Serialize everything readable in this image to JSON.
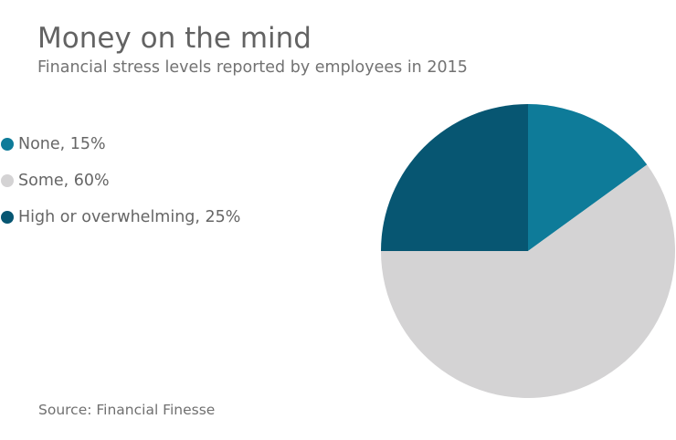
{
  "header": {
    "title": "Money on the mind",
    "subtitle": "Financial stress levels reported by employees in 2015"
  },
  "legend": {
    "items": [
      {
        "label": "None, 15%",
        "color": "#0e7b99"
      },
      {
        "label": "Some, 60%",
        "color": "#d4d3d4"
      },
      {
        "label": "High or overwhelming, 25%",
        "color": "#075672"
      }
    ]
  },
  "footer": {
    "source": "Source: Financial Finesse"
  },
  "chart_data": {
    "type": "pie",
    "title": "Money on the mind",
    "subtitle": "Financial stress levels reported by employees in 2015",
    "categories": [
      "None",
      "Some",
      "High or overwhelming"
    ],
    "values": [
      15,
      60,
      25
    ],
    "unit": "%",
    "colors": [
      "#0e7b99",
      "#d4d3d4",
      "#075672"
    ],
    "start_angle": "12 o'clock",
    "direction": "clockwise",
    "legend_position": "left",
    "source": "Source: Financial Finesse"
  }
}
